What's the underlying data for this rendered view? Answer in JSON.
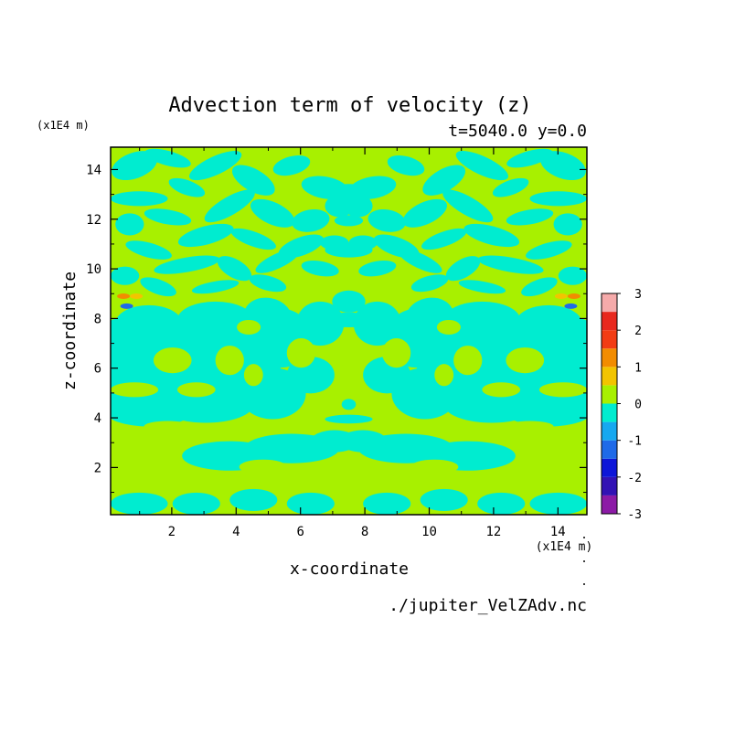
{
  "chart_data": {
    "type": "heatmap",
    "title": "Advection term of velocity (z)",
    "subtitle": "t=5040.0 y=0.0",
    "xlabel": "x-coordinate",
    "ylabel": "z-coordinate",
    "x_unit": "(x1E4 m)",
    "y_unit": "(x1E4 m)",
    "source": "./jupiter_VelZAdv.nc",
    "xlim": [
      0.1,
      14.9
    ],
    "ylim": [
      0.1,
      14.9
    ],
    "x_ticks": [
      "2",
      "4",
      "6",
      "8",
      "10",
      "12",
      "14"
    ],
    "y_ticks": [
      "2",
      "4",
      "6",
      "8",
      "10",
      "12",
      "14"
    ],
    "colorbar": {
      "levels": [
        "-3",
        "-2",
        "-1",
        "0",
        "1",
        "2",
        "3"
      ],
      "colors": [
        "#8c1aa6",
        "#3212b4",
        "#0d16d8",
        "#1f6ae8",
        "#16a8f0",
        "#00ecd0",
        "#a8f000",
        "#f2c400",
        "#f28c00",
        "#f23c14",
        "#e8281e",
        "#f5aaaa"
      ]
    },
    "dominant_colors": {
      "zero_to_half": "#a8f000",
      "minus_half_to_zero": "#00ecd0"
    },
    "field_pattern": "left-right mirror symmetric about x=7.5; alternating bands of values just above and just below zero; small orange and blue spots near x≈0.5 and x≈14.5 at z≈8.8"
  }
}
